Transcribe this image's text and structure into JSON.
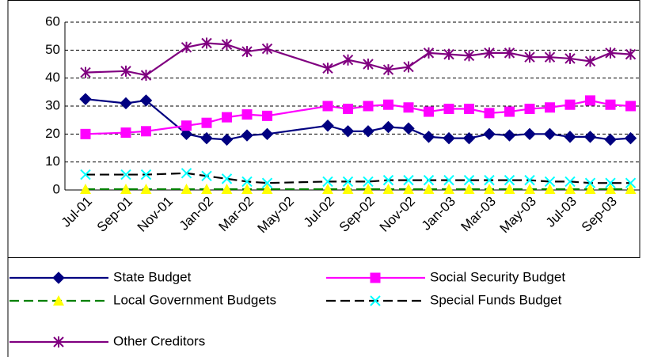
{
  "chart_data": {
    "type": "line",
    "categories": [
      "Jul-01",
      null,
      "Sep-01",
      null,
      "Nov-01",
      null,
      "Jan-02",
      null,
      "Mar-02",
      null,
      "May-02",
      null,
      "Jul-02",
      null,
      "Sep-02",
      null,
      "Nov-02",
      null,
      "Jan-03",
      null,
      "Mar-03",
      null,
      "May-03",
      null,
      "Jul-03",
      null,
      "Sep-03",
      null
    ],
    "series": [
      {
        "name": "State Budget",
        "color": "#000080",
        "marker": "diamond",
        "dash": false,
        "values": [
          32.5,
          null,
          31,
          32,
          null,
          20,
          18.5,
          18,
          19.5,
          20,
          null,
          null,
          23,
          21,
          21,
          22.5,
          22,
          19,
          18.5,
          18.5,
          20,
          19.5,
          20,
          20,
          19,
          19,
          18,
          18.5
        ]
      },
      {
        "name": "Social Security Budget",
        "color": "#ff00ff",
        "marker": "square",
        "dash": false,
        "values": [
          20,
          null,
          20.5,
          21,
          null,
          23,
          24,
          26,
          27,
          26.5,
          null,
          null,
          30,
          29,
          30,
          30.5,
          29.5,
          28,
          29,
          29,
          27.5,
          28,
          29,
          29.5,
          30.5,
          32,
          30.5,
          30
        ]
      },
      {
        "name": "Local Government Budgets",
        "color": "#008000",
        "marker_color": "#ffff00",
        "marker": "triangle",
        "dash": true,
        "values": [
          0.3,
          null,
          0.3,
          0.3,
          null,
          0.3,
          0.3,
          0.3,
          0.3,
          0.3,
          null,
          null,
          0.3,
          0.3,
          0.3,
          0.3,
          0.3,
          0.3,
          0.3,
          0.3,
          0.3,
          0.3,
          0.3,
          0.3,
          0.3,
          0.3,
          0.3,
          0.3
        ]
      },
      {
        "name": "Special Funds Budget",
        "color": "#000000",
        "marker_color": "#00ffff",
        "marker": "x",
        "dash": true,
        "values": [
          5.5,
          null,
          5.5,
          5.5,
          null,
          6,
          5,
          4,
          3,
          2.5,
          null,
          null,
          3,
          3,
          3,
          3.5,
          3.5,
          3.5,
          3.5,
          3.5,
          3.5,
          3.5,
          3.5,
          3,
          3,
          2.5,
          2.5,
          2.5
        ]
      },
      {
        "name": "Other Creditors",
        "color": "#800080",
        "marker": "star",
        "dash": false,
        "values": [
          42,
          null,
          42.5,
          41,
          null,
          51,
          52.5,
          52,
          49.5,
          50.5,
          null,
          null,
          43.5,
          46.5,
          45,
          43,
          44,
          49,
          48.5,
          48,
          49,
          49,
          47.5,
          47.5,
          47,
          46,
          49,
          48.5
        ]
      }
    ],
    "connect_gaps": true,
    "ylim": [
      0,
      60
    ],
    "yticks": [
      0,
      10,
      20,
      30,
      40,
      50,
      60
    ],
    "grid": true
  }
}
